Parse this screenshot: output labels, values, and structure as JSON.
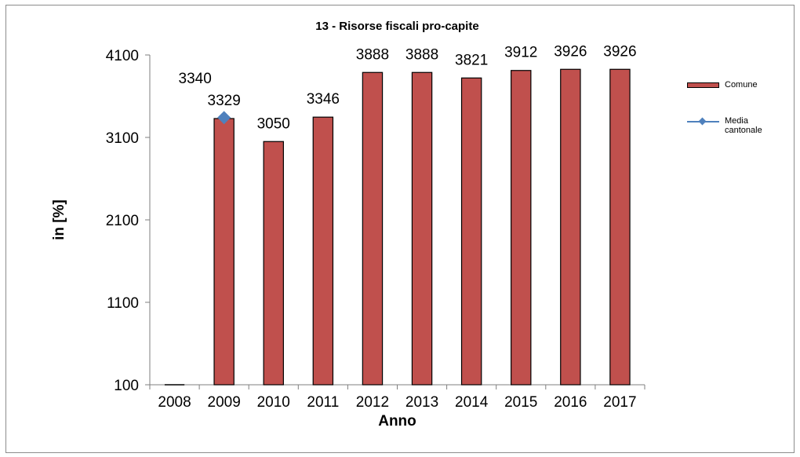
{
  "chart_data": {
    "type": "bar",
    "title": "13 - Risorse fiscali pro-capite",
    "xlabel": "Anno",
    "ylabel": "in  [%]",
    "ylim": [
      100,
      4100
    ],
    "yticks": [
      "100",
      "1100",
      "2100",
      "3100",
      "4100"
    ],
    "categories": [
      "2008",
      "2009",
      "2010",
      "2011",
      "2012",
      "2013",
      "2014",
      "2015",
      "2016",
      "2017"
    ],
    "series": [
      {
        "name": "Comune",
        "kind": "bar",
        "color": "#c0504d",
        "values": [
          100,
          3329,
          3050,
          3346,
          3888,
          3888,
          3821,
          3912,
          3926,
          3926
        ],
        "labels": [
          "",
          "3329",
          "3050",
          "3346",
          "3888",
          "3888",
          "3821",
          "3912",
          "3926",
          "3926"
        ]
      },
      {
        "name": "Media cantonale",
        "kind": "line",
        "color": "#4f81bd",
        "values": [
          null,
          3340,
          null,
          null,
          null,
          null,
          null,
          null,
          null,
          null
        ],
        "labels": [
          "",
          "3340",
          "",
          "",
          "",
          "",
          "",
          "",
          "",
          ""
        ]
      }
    ],
    "legend_position": "right",
    "grid": false
  },
  "legend": {
    "items": [
      {
        "label_line1": "Comune",
        "label_line2": ""
      },
      {
        "label_line1": "Media",
        "label_line2": "cantonale"
      }
    ]
  }
}
